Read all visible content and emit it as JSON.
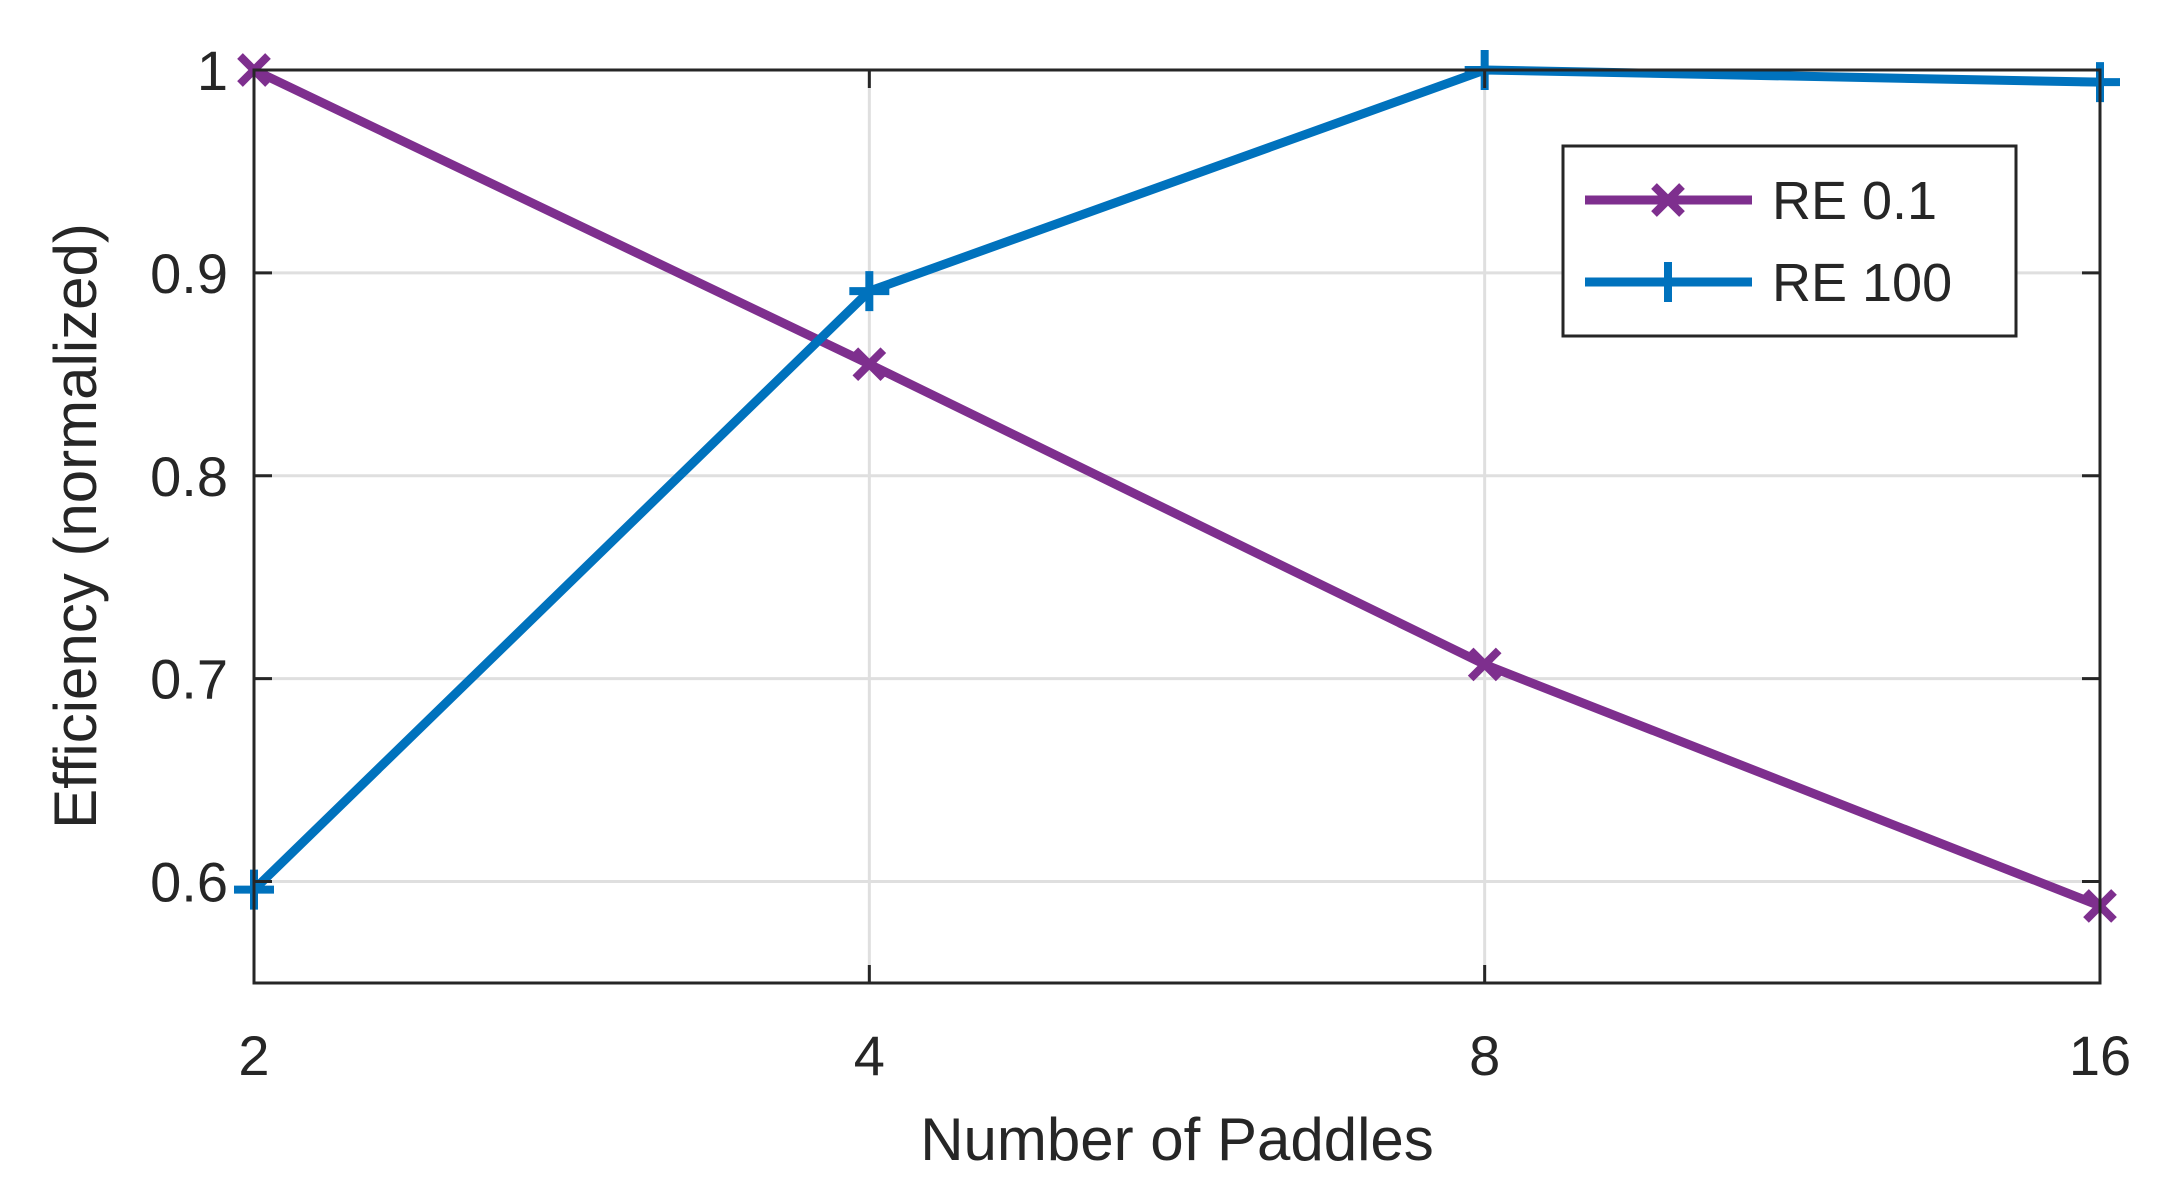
{
  "chart_data": {
    "type": "line",
    "title": "",
    "xlabel": "Number of Paddles",
    "ylabel": "Efficiency (normalized)",
    "x": [
      2,
      4,
      8,
      16
    ],
    "x_tick_labels": [
      "2",
      "4",
      "8",
      "16"
    ],
    "y_ticks": [
      0.6,
      0.7,
      0.8,
      0.9,
      1
    ],
    "y_tick_labels": [
      "0.6",
      "0.7",
      "0.8",
      "0.9",
      "1"
    ],
    "ylim": [
      0.55,
      1.0
    ],
    "x_scale": "log2",
    "grid": true,
    "legend_position": "top-right",
    "series": [
      {
        "name": "RE 0.1",
        "color": "#7e2f8e",
        "marker": "x",
        "values": [
          1.0,
          0.855,
          0.707,
          0.588
        ]
      },
      {
        "name": "RE 100",
        "color": "#0072bd",
        "marker": "+",
        "values": [
          0.596,
          0.891,
          1.0,
          0.994
        ]
      }
    ]
  }
}
